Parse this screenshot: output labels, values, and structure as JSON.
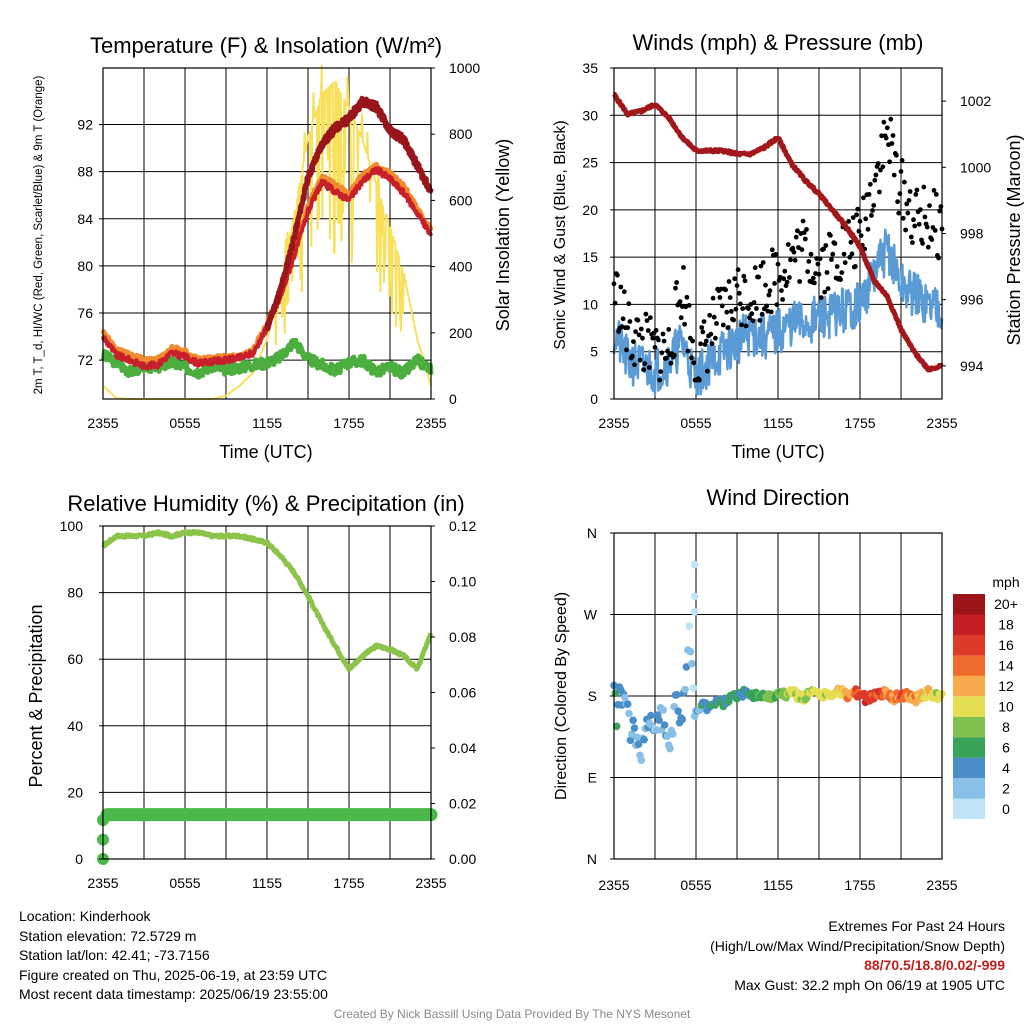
{
  "panels": {
    "temp": {
      "title": "Temperature (F) & Insolation (W/m²)",
      "ylabel": "2m T, T_d, HI/WC (Red, Green, Scarlet/Blue) & 9m T (Orange)",
      "ylabel_right": "Solar Insolation (Yellow)",
      "xlabel": "Time (UTC)"
    },
    "wind": {
      "title": "Winds (mph) & Pressure (mb)",
      "ylabel": "Sonic Wind & Gust (Blue, Black)",
      "ylabel_right": "Station Pressure (Maroon)",
      "xlabel": "Time (UTC)"
    },
    "rh": {
      "title": "Relative Humidity (%) & Precipitation (in)",
      "ylabel": "Percent & Precipitation"
    },
    "dir": {
      "title": "Wind Direction",
      "ylabel": "Direction (Colored By Speed)",
      "colorbar_title": "mph",
      "colorbar_labels": [
        "0",
        "2",
        "4",
        "6",
        "8",
        "10",
        "12",
        "14",
        "16",
        "18",
        "20+"
      ],
      "colorbar_colors": [
        "#bfe4f7",
        "#88c0e8",
        "#4a8ec9",
        "#3aa35a",
        "#7fc04f",
        "#e4df52",
        "#f7a94b",
        "#ef6b2c",
        "#de3a2a",
        "#c41f22",
        "#9a1418"
      ]
    }
  },
  "colors": {
    "temp_red": "#c8202a",
    "heat_index_scarlet": "#98151b",
    "temp_9m_orange": "#f08a2c",
    "dewpoint_green": "#4cae3e",
    "insolation_yellow": "#f8e05a",
    "wind_blue": "#5b9bd5",
    "gust_black": "#000000",
    "pressure_maroon": "#a3171b",
    "rh_green": "#8cc34b",
    "precip_green": "#4cb84a"
  },
  "chart_data": [
    {
      "type": "line",
      "title": "Temperature (F) & Insolation (W/m²)",
      "xlabel": "Time (UTC)",
      "x_ticks": [
        "2355",
        "0555",
        "1155",
        "1755",
        "2355"
      ],
      "x_hours": [
        0,
        3,
        6,
        9,
        12,
        15,
        18,
        21,
        24
      ],
      "ylabel": "2m T, T_d, HI/WC (Red, Green, Scarlet/Blue) & 9m T (Orange)",
      "ylim": [
        68.7,
        96.8
      ],
      "yticks": [
        72,
        76,
        80,
        84,
        88,
        92
      ],
      "ylabel_right": "Solar Insolation (Yellow)",
      "ylim_right": [
        0,
        1000
      ],
      "yticks_right": [
        0,
        200,
        400,
        600,
        800,
        1000
      ],
      "series": [
        {
          "name": "2m T",
          "axis": "left",
          "x": [
            0,
            1,
            2,
            3,
            4,
            5,
            6,
            7,
            8,
            9,
            10,
            11,
            12,
            13,
            14,
            15,
            16,
            17,
            18,
            19,
            20,
            21,
            22,
            23,
            24
          ],
          "values": [
            74.0,
            72.4,
            72.0,
            71.5,
            71.6,
            72.6,
            72.3,
            71.7,
            71.9,
            72.0,
            72.2,
            72.6,
            74.8,
            77.4,
            80.9,
            84.6,
            87.1,
            86.3,
            85.6,
            87.2,
            88.2,
            87.4,
            86.2,
            84.5,
            82.6
          ]
        },
        {
          "name": "9m T",
          "axis": "left",
          "x": [
            0,
            1,
            2,
            3,
            4,
            5,
            6,
            7,
            8,
            9,
            10,
            11,
            12,
            13,
            14,
            15,
            16,
            17,
            18,
            19,
            20,
            21,
            22,
            23,
            24
          ],
          "values": [
            74.3,
            72.8,
            72.4,
            72.0,
            72.0,
            73.0,
            72.7,
            72.0,
            72.1,
            72.2,
            72.3,
            72.8,
            75.0,
            77.7,
            81.2,
            85.0,
            87.5,
            86.8,
            86.0,
            87.7,
            88.5,
            87.8,
            86.7,
            84.9,
            83.0
          ]
        },
        {
          "name": "HI/WC",
          "axis": "left",
          "x": [
            12,
            13,
            14,
            15,
            16,
            17,
            18,
            19,
            20,
            21,
            22,
            23,
            24
          ],
          "values": [
            74.7,
            78.0,
            82.5,
            87.5,
            90.3,
            91.7,
            92.5,
            94.0,
            93.5,
            91.5,
            90.7,
            88.5,
            86.3
          ]
        },
        {
          "name": "Td",
          "axis": "left",
          "x": [
            0,
            1,
            2,
            3,
            4,
            5,
            6,
            7,
            8,
            9,
            10,
            11,
            12,
            13,
            14,
            15,
            16,
            17,
            18,
            19,
            20,
            21,
            22,
            23,
            24
          ],
          "values": [
            72.4,
            71.8,
            71.0,
            71.5,
            71.4,
            71.8,
            71.4,
            71.0,
            71.5,
            71.2,
            71.4,
            71.6,
            71.8,
            72.3,
            73.6,
            72.1,
            71.6,
            71.1,
            71.8,
            72.0,
            71.0,
            71.4,
            70.9,
            72.0,
            71.2
          ]
        },
        {
          "name": "Solar Insolation",
          "axis": "right",
          "x": [
            0,
            1,
            2,
            3,
            4,
            5,
            6,
            7,
            8,
            9,
            10,
            11,
            12,
            13,
            14,
            15,
            16,
            17,
            18,
            19,
            20,
            21,
            22,
            23,
            24
          ],
          "values": [
            40,
            2,
            0,
            0,
            0,
            0,
            0,
            0,
            0,
            10,
            40,
            80,
            180,
            360,
            560,
            790,
            920,
            960,
            880,
            780,
            650,
            520,
            380,
            180,
            40
          ]
        }
      ]
    },
    {
      "type": "line",
      "title": "Winds (mph) & Pressure (mb)",
      "xlabel": "Time (UTC)",
      "x_ticks": [
        "2355",
        "0555",
        "1155",
        "1755",
        "2355"
      ],
      "ylabel": "Sonic Wind & Gust (Blue, Black)",
      "ylim": [
        0,
        35
      ],
      "yticks": [
        0,
        5,
        10,
        15,
        20,
        25,
        30,
        35
      ],
      "ylabel_right": "Station Pressure (Maroon)",
      "ylim_right": [
        993.0,
        1003.0
      ],
      "yticks_right": [
        994,
        996,
        998,
        1000,
        1002
      ],
      "series": [
        {
          "name": "Sonic Wind",
          "axis": "left",
          "x": [
            0,
            1,
            2,
            3,
            4,
            5,
            6,
            7,
            8,
            9,
            10,
            11,
            12,
            13,
            14,
            15,
            16,
            17,
            18,
            19,
            20,
            21,
            22,
            23,
            24
          ],
          "values": [
            7,
            4,
            3.5,
            3,
            4,
            6,
            2,
            4,
            5,
            6,
            7,
            6.5,
            7,
            8,
            8,
            8.5,
            9,
            9.5,
            10,
            13,
            16,
            12,
            11,
            10,
            10
          ]
        },
        {
          "name": "Gust",
          "axis": "left",
          "x": [
            0,
            1,
            2,
            3,
            4,
            5,
            6,
            7,
            8,
            9,
            10,
            11,
            12,
            13,
            14,
            15,
            16,
            17,
            18,
            19,
            20,
            21,
            22,
            23,
            24
          ],
          "values": [
            12,
            7,
            6,
            5,
            5,
            12,
            3,
            7,
            9,
            11,
            11,
            12,
            13,
            15,
            16,
            14,
            15,
            16,
            17,
            23,
            28,
            22,
            19,
            19,
            18
          ]
        },
        {
          "name": "Station Pressure",
          "axis": "right",
          "x": [
            0,
            1,
            2,
            3,
            4,
            5,
            6,
            7,
            8,
            9,
            10,
            11,
            12,
            13,
            14,
            15,
            16,
            17,
            18,
            19,
            20,
            21,
            22,
            23,
            24
          ],
          "values": [
            1002.2,
            1001.6,
            1001.7,
            1001.9,
            1001.5,
            1000.9,
            1000.5,
            1000.5,
            1000.5,
            1000.4,
            1000.4,
            1000.6,
            1000.9,
            1000.1,
            999.6,
            999.2,
            998.7,
            998.2,
            997.6,
            996.6,
            996.1,
            995.1,
            994.4,
            993.9,
            994.0
          ]
        }
      ]
    },
    {
      "type": "line",
      "title": "Relative Humidity (%) & Precipitation (in)",
      "x_ticks": [
        "2355",
        "0555",
        "1155",
        "1755",
        "2355"
      ],
      "ylabel": "Percent & Precipitation",
      "ylim": [
        0,
        100
      ],
      "yticks": [
        0,
        20,
        40,
        60,
        80,
        100
      ],
      "ylim_right": [
        0,
        0.12
      ],
      "yticks_right": [
        "0.00",
        "0.02",
        "0.04",
        "0.06",
        "0.08",
        "0.10",
        "0.12"
      ],
      "series": [
        {
          "name": "Relative Humidity",
          "axis": "left",
          "x": [
            0,
            1,
            2,
            3,
            4,
            5,
            6,
            7,
            8,
            9,
            10,
            11,
            12,
            13,
            14,
            15,
            16,
            17,
            18,
            19,
            20,
            21,
            22,
            23,
            24
          ],
          "values": [
            94,
            97,
            97,
            97,
            98,
            97,
            98,
            98,
            97,
            97,
            97,
            96,
            95,
            91,
            86,
            79,
            71,
            64,
            57,
            61,
            64,
            63,
            61,
            57,
            68
          ]
        },
        {
          "name": "Precipitation",
          "axis": "right",
          "x": [
            0,
            0.1,
            0.2,
            0.3,
            24
          ],
          "values": [
            0.0,
            0.007,
            0.014,
            0.016,
            0.016
          ]
        }
      ]
    },
    {
      "type": "scatter",
      "title": "Wind Direction",
      "ylabel": "Direction (Colored By Speed)",
      "x_ticks": [
        "2355",
        "0555",
        "1155",
        "1755",
        "2355"
      ],
      "yticks": [
        "N",
        "E",
        "S",
        "W",
        "N"
      ],
      "ylim": [
        0,
        360
      ],
      "colorbar": {
        "title": "mph",
        "labels": [
          "0",
          "2",
          "4",
          "6",
          "8",
          "10",
          "12",
          "14",
          "16",
          "18",
          "20+"
        ]
      },
      "points_hourly": {
        "x": [
          0,
          0.5,
          1,
          1.5,
          2,
          2.5,
          3,
          3.5,
          4,
          4.5,
          5,
          5.5,
          6,
          6.5,
          7,
          7.5,
          8,
          8.5,
          9,
          9.5,
          10,
          10.5,
          11,
          11.5,
          12,
          12.5,
          13,
          13.5,
          14,
          14.5,
          15,
          15.5,
          16,
          16.5,
          17,
          17.5,
          18,
          18.5,
          19,
          19.5,
          20,
          20.5,
          21,
          21.5,
          22,
          22.5,
          23,
          23.5,
          24
        ],
        "direction": [
          182,
          180,
          165,
          140,
          120,
          155,
          150,
          160,
          125,
          170,
          165,
          250,
          160,
          170,
          165,
          175,
          172,
          178,
          180,
          184,
          182,
          180,
          180,
          178,
          183,
          181,
          185,
          180,
          178,
          184,
          180,
          182,
          178,
          186,
          180,
          184,
          182,
          176,
          180,
          182,
          184,
          178,
          180,
          182,
          176,
          180,
          184,
          180,
          178
        ],
        "speed": [
          5,
          4,
          3,
          3,
          2,
          3,
          2,
          3,
          2,
          3,
          4,
          1,
          3,
          4,
          4,
          5,
          5,
          6,
          5,
          6,
          6,
          7,
          7,
          8,
          7,
          8,
          8,
          9,
          8,
          9,
          10,
          9,
          10,
          11,
          12,
          14,
          16,
          17,
          15,
          16,
          14,
          13,
          15,
          13,
          12,
          12,
          11,
          10,
          10
        ]
      }
    }
  ],
  "footer": {
    "location": "Location: Kinderhook",
    "elevation": "Station elevation: 72.5729 m",
    "latlon": "Station lat/lon: 42.41; -73.7156",
    "created": "Figure created on Thu, 2025-06-19, at 23:59 UTC",
    "latest": "Most recent data timestamp: 2025/06/19 23:55:00",
    "extremes_title": "Extremes For Past 24 Hours",
    "extremes_legend": "(High/Low/Max Wind/Precipitation/Snow Depth)",
    "extremes_values": "88/70.5/18.8/0.02/-999",
    "max_gust": "Max Gust: 32.2 mph On 06/19 at 1905 UTC",
    "credit": "Created By Nick Bassill Using Data Provided By The NYS Mesonet"
  }
}
